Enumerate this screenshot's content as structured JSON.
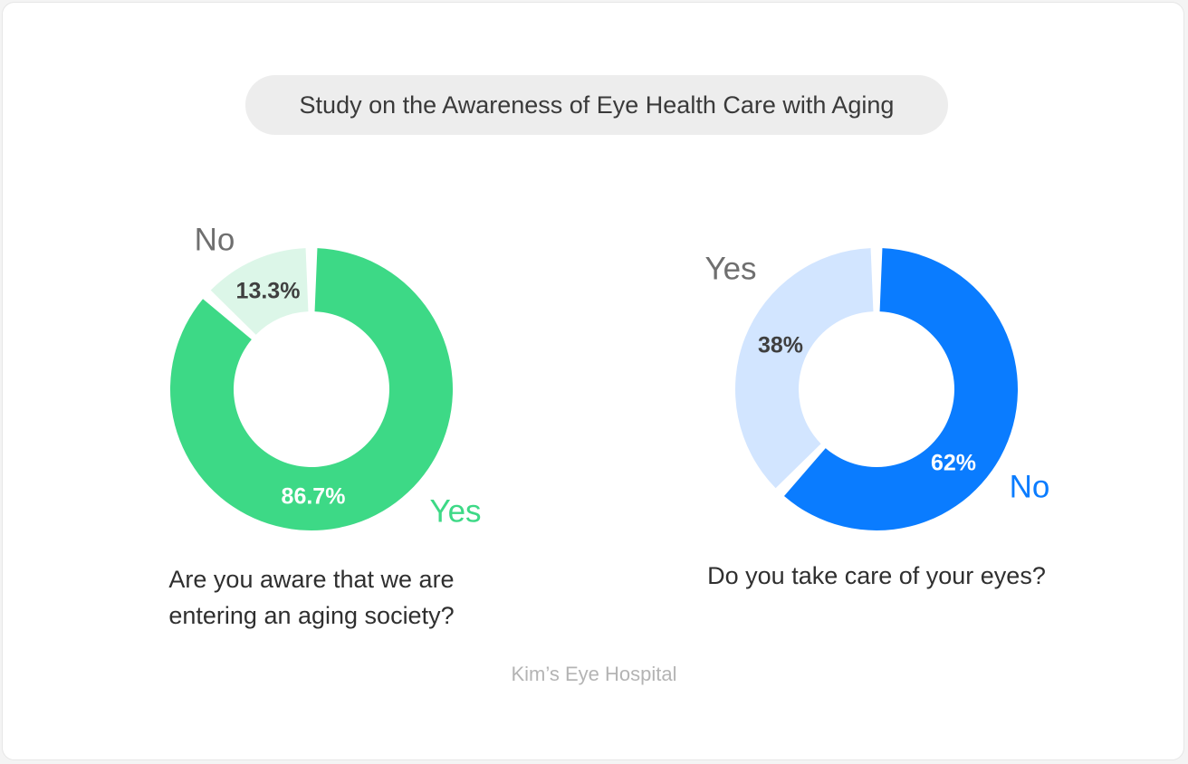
{
  "title": "Study on the Awareness of Eye Health Care with Aging",
  "footer": "Kim’s Eye Hospital",
  "chart_data": [
    {
      "type": "pie",
      "donut": true,
      "question": "Are you aware that we are entering an aging society?",
      "slices": [
        {
          "label": "Yes",
          "value": 86.7,
          "value_label": "86.7%",
          "color": "#3dd986",
          "text_color": "#ffffff",
          "label_color": "#3dd986"
        },
        {
          "label": "No",
          "value": 13.3,
          "value_label": "13.3%",
          "color": "#dcf6e8",
          "text_color": "#3f3f3f",
          "label_color": "#6f6f6f"
        }
      ]
    },
    {
      "type": "pie",
      "donut": true,
      "question": "Do you take care of your eyes?",
      "slices": [
        {
          "label": "No",
          "value": 62,
          "value_label": "62%",
          "color": "#0a7cff",
          "text_color": "#ffffff",
          "label_color": "#0a7cff"
        },
        {
          "label": "Yes",
          "value": 38,
          "value_label": "38%",
          "color": "#d2e5ff",
          "text_color": "#3f3f3f",
          "label_color": "#6f6f6f"
        }
      ]
    }
  ]
}
